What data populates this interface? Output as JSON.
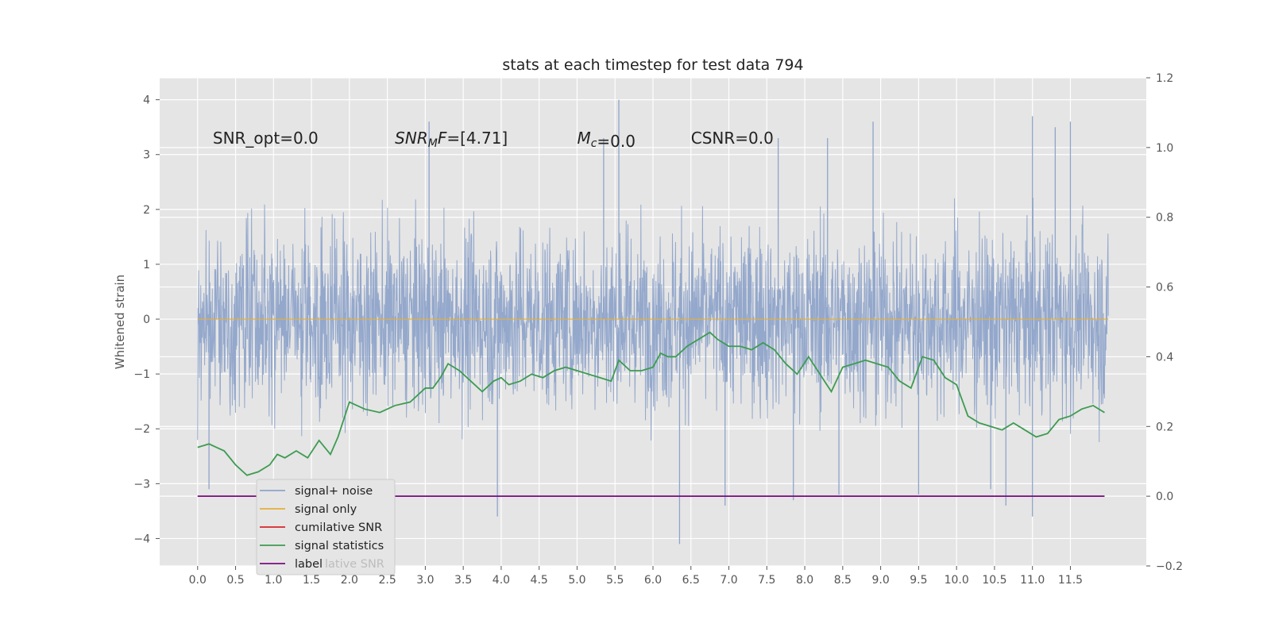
{
  "chart_data": {
    "type": "line",
    "title": "stats at each timestep for test data 794",
    "ylabel": "Whitened strain",
    "xlim": [
      -0.5,
      12.5
    ],
    "ylim": [
      -4.5,
      4.4
    ],
    "y2lim": [
      -0.2,
      1.2
    ],
    "x_ticks": [
      0.0,
      0.5,
      1.0,
      1.5,
      2.0,
      2.5,
      3.0,
      3.5,
      4.0,
      4.5,
      5.0,
      5.5,
      6.0,
      6.5,
      7.0,
      7.5,
      8.0,
      8.5,
      9.0,
      9.5,
      10.0,
      10.5,
      11.0,
      11.5
    ],
    "x_tick_labels": [
      "0.0",
      "0.5",
      "1.0",
      "1.5",
      "2.0",
      "2.5",
      "3.0",
      "3.5",
      "4.0",
      "4.5",
      "5.0",
      "5.5",
      "6.0",
      "6.5",
      "7.0",
      "7.5",
      "8.0",
      "8.5",
      "9.0",
      "9.5",
      "10.0",
      "10.5",
      "11.0",
      "11.5"
    ],
    "y_ticks": [
      -4,
      -3,
      -2,
      -1,
      0,
      1,
      2,
      3,
      4
    ],
    "y_tick_labels": [
      "−4",
      "−3",
      "−2",
      "−1",
      "0",
      "1",
      "2",
      "3",
      "4"
    ],
    "y2_ticks": [
      -0.2,
      0.0,
      0.2,
      0.4,
      0.6,
      0.8,
      1.0,
      1.2
    ],
    "y2_tick_labels": [
      "−0.2",
      "0.0",
      "0.2",
      "0.4",
      "0.6",
      "0.8",
      "1.0",
      "1.2"
    ],
    "grid": true,
    "legend_placement": "lower-left",
    "annotations": [
      {
        "text": "SNR_opt=0.0",
        "x": 0.2,
        "y": 3.2
      },
      {
        "text": "SNR_MF=[4.71]",
        "x": 2.6,
        "y": 3.2
      },
      {
        "text": "M_c=0.0",
        "x": 5.0,
        "y": 3.2
      },
      {
        "text": "CSNR=0.0",
        "x": 6.5,
        "y": 3.2
      }
    ],
    "series": [
      {
        "name": "signal+ noise",
        "color": "#8fa4ca",
        "axis": "left",
        "style": "dense noise trace, values spanning roughly -4.1 to 4.0",
        "x_range": [
          0.0,
          12.0
        ],
        "range": [
          -4.1,
          4.0
        ],
        "spikes": [
          {
            "x": 3.05,
            "y": 3.6
          },
          {
            "x": 5.55,
            "y": 4.0
          },
          {
            "x": 5.35,
            "y": 3.3
          },
          {
            "x": 7.65,
            "y": 3.3
          },
          {
            "x": 8.3,
            "y": 3.3
          },
          {
            "x": 8.9,
            "y": 3.6
          },
          {
            "x": 11.0,
            "y": 3.7
          },
          {
            "x": 11.5,
            "y": 3.6
          },
          {
            "x": 11.3,
            "y": 3.5
          },
          {
            "x": 6.35,
            "y": -4.1
          },
          {
            "x": 3.95,
            "y": -3.6
          },
          {
            "x": 11.0,
            "y": -3.6
          },
          {
            "x": 10.65,
            "y": -3.4
          },
          {
            "x": 6.95,
            "y": -3.4
          },
          {
            "x": 7.85,
            "y": -3.3
          },
          {
            "x": 8.45,
            "y": -3.2
          },
          {
            "x": 9.5,
            "y": -3.2
          },
          {
            "x": 0.15,
            "y": -3.1
          },
          {
            "x": 10.45,
            "y": -3.1
          }
        ]
      },
      {
        "name": "signal only",
        "color": "#e5ae38",
        "axis": "left",
        "x": [
          0.0,
          12.0
        ],
        "values": [
          0.0,
          0.0
        ]
      },
      {
        "name": "cumilative SNR",
        "color": "#d62728",
        "axis": "right",
        "x": [],
        "values": []
      },
      {
        "name": "signal statistics",
        "color": "#3d9b51",
        "axis": "right",
        "x": [
          0.0,
          0.15,
          0.25,
          0.35,
          0.5,
          0.65,
          0.8,
          0.95,
          1.05,
          1.15,
          1.3,
          1.45,
          1.6,
          1.75,
          1.85,
          2.0,
          2.2,
          2.4,
          2.6,
          2.8,
          3.0,
          3.1,
          3.2,
          3.3,
          3.45,
          3.6,
          3.75,
          3.9,
          4.0,
          4.1,
          4.25,
          4.4,
          4.55,
          4.7,
          4.85,
          5.0,
          5.15,
          5.3,
          5.45,
          5.55,
          5.7,
          5.85,
          6.0,
          6.1,
          6.2,
          6.3,
          6.45,
          6.6,
          6.75,
          6.85,
          7.0,
          7.15,
          7.3,
          7.45,
          7.6,
          7.75,
          7.9,
          8.05,
          8.2,
          8.35,
          8.5,
          8.65,
          8.8,
          8.95,
          9.1,
          9.25,
          9.4,
          9.55,
          9.7,
          9.85,
          10.0,
          10.15,
          10.3,
          10.45,
          10.6,
          10.75,
          10.9,
          11.05,
          11.2,
          11.35,
          11.5,
          11.65,
          11.8,
          11.95
        ],
        "values": [
          0.14,
          0.15,
          0.14,
          0.13,
          0.09,
          0.06,
          0.07,
          0.09,
          0.12,
          0.11,
          0.13,
          0.11,
          0.16,
          0.12,
          0.17,
          0.27,
          0.25,
          0.24,
          0.26,
          0.27,
          0.31,
          0.31,
          0.34,
          0.38,
          0.36,
          0.33,
          0.3,
          0.33,
          0.34,
          0.32,
          0.33,
          0.35,
          0.34,
          0.36,
          0.37,
          0.36,
          0.35,
          0.34,
          0.33,
          0.39,
          0.36,
          0.36,
          0.37,
          0.41,
          0.4,
          0.4,
          0.43,
          0.45,
          0.47,
          0.45,
          0.43,
          0.43,
          0.42,
          0.44,
          0.42,
          0.38,
          0.35,
          0.4,
          0.35,
          0.3,
          0.37,
          0.38,
          0.39,
          0.38,
          0.37,
          0.33,
          0.31,
          0.4,
          0.39,
          0.34,
          0.32,
          0.23,
          0.21,
          0.2,
          0.19,
          0.21,
          0.19,
          0.17,
          0.18,
          0.22,
          0.23,
          0.25,
          0.26,
          0.24
        ]
      },
      {
        "name": "label",
        "color": "#7a0a80",
        "axis": "right",
        "x": [
          0.0,
          11.95
        ],
        "values": [
          0.0,
          0.0
        ]
      }
    ],
    "legend_entries": [
      "signal+ noise",
      "signal only",
      "cumilative SNR",
      "signal statistics",
      "label"
    ],
    "legend_ghost_text": "lative SNR"
  }
}
